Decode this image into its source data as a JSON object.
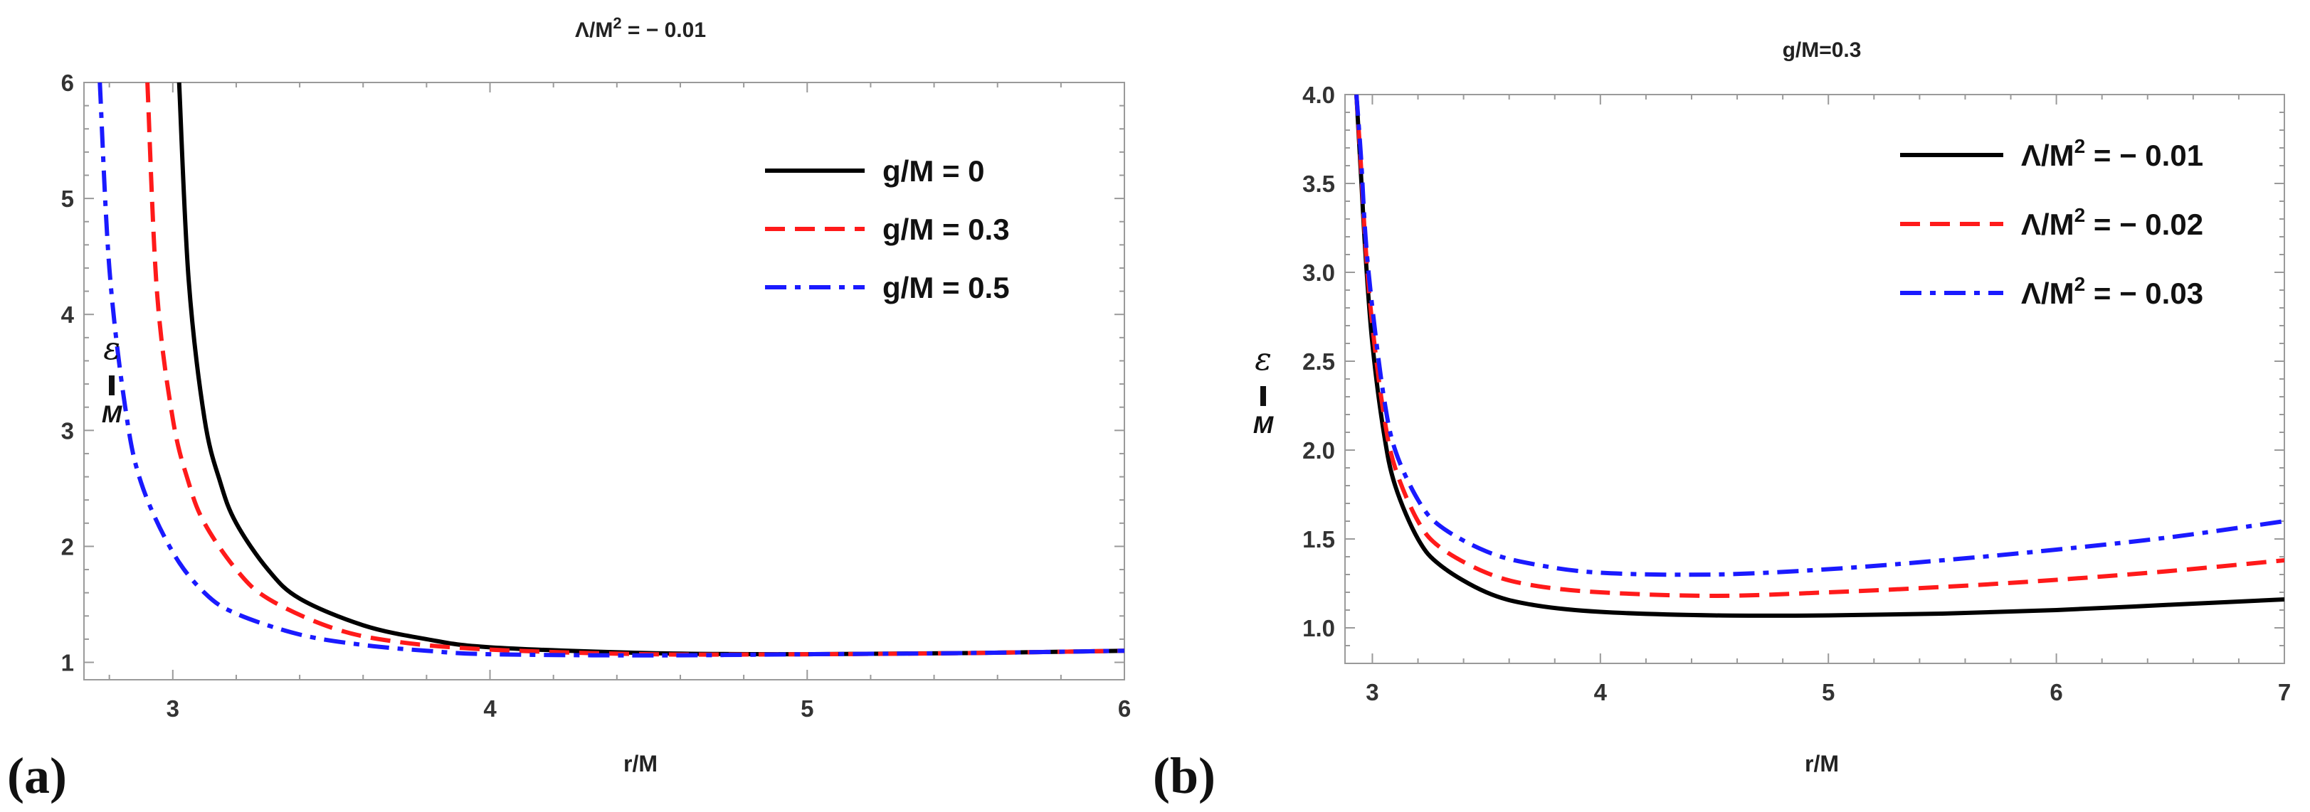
{
  "chart_data": [
    {
      "type": "line",
      "panel_label": "(a)",
      "title": "Λ/M² = − 0.01",
      "title_main": "Λ/M",
      "title_sup": "2",
      "title_tail": " = − 0.01",
      "xlabel": "r/M",
      "ylabel": "ε/M",
      "ylabel_symbol": "ε",
      "ylabel_denominator": "M",
      "xlim": [
        2.72,
        6.0
      ],
      "ylim": [
        0.85,
        6.0
      ],
      "xticks": [
        3,
        4,
        5,
        6
      ],
      "yticks": [
        1,
        2,
        3,
        4,
        5,
        6
      ],
      "legend_position": "top-right",
      "series": [
        {
          "name": "g/M = 0",
          "color": "#000000",
          "style": "solid",
          "x": [
            3.02,
            3.05,
            3.1,
            3.15,
            3.2,
            3.3,
            3.4,
            3.6,
            3.8,
            4.0,
            4.5,
            5.0,
            5.5,
            6.0
          ],
          "y": [
            6.0,
            4.3,
            3.1,
            2.55,
            2.2,
            1.8,
            1.55,
            1.32,
            1.2,
            1.13,
            1.08,
            1.07,
            1.08,
            1.1
          ]
        },
        {
          "name": "g/M = 0.3",
          "color": "#ff1a1a",
          "style": "dashed",
          "x": [
            2.92,
            2.95,
            3.0,
            3.05,
            3.1,
            3.2,
            3.3,
            3.5,
            3.7,
            4.0,
            4.5,
            5.0,
            5.5,
            6.0
          ],
          "y": [
            6.0,
            4.2,
            3.1,
            2.55,
            2.2,
            1.8,
            1.55,
            1.3,
            1.18,
            1.11,
            1.07,
            1.07,
            1.08,
            1.1
          ]
        },
        {
          "name": "g/M = 0.5",
          "color": "#1a1aff",
          "style": "dashdot",
          "x": [
            2.77,
            2.8,
            2.85,
            2.9,
            3.0,
            3.1,
            3.2,
            3.4,
            3.6,
            3.8,
            4.0,
            4.5,
            5.0,
            5.5,
            6.0
          ],
          "y": [
            6.0,
            4.4,
            3.2,
            2.55,
            1.95,
            1.6,
            1.42,
            1.24,
            1.15,
            1.1,
            1.07,
            1.06,
            1.07,
            1.08,
            1.1
          ]
        }
      ]
    },
    {
      "type": "line",
      "panel_label": "(b)",
      "title": "g/M=0.3",
      "xlabel": "r/M",
      "ylabel": "ε/M",
      "ylabel_symbol": "ε",
      "ylabel_denominator": "M",
      "xlim": [
        2.88,
        7.0
      ],
      "ylim": [
        0.8,
        4.0
      ],
      "xticks": [
        3,
        4,
        5,
        6,
        7
      ],
      "yticks": [
        1.0,
        1.5,
        2.0,
        2.5,
        3.0,
        3.5,
        4.0
      ],
      "legend_position": "top-right",
      "legend_prefix": "Λ/M",
      "legend_sup": "2",
      "series": [
        {
          "name": "Λ/M² = − 0.01",
          "label_tail": " = − 0.01",
          "color": "#000000",
          "style": "solid",
          "x": [
            2.93,
            2.95,
            2.97,
            3.0,
            3.05,
            3.1,
            3.2,
            3.3,
            3.5,
            3.7,
            4.0,
            4.5,
            5.0,
            5.5,
            6.0,
            6.5,
            7.0
          ],
          "y": [
            4.0,
            3.55,
            3.1,
            2.6,
            2.1,
            1.8,
            1.5,
            1.35,
            1.2,
            1.13,
            1.09,
            1.07,
            1.07,
            1.08,
            1.1,
            1.13,
            1.16
          ]
        },
        {
          "name": "Λ/M² = − 0.02",
          "label_tail": " = − 0.02",
          "color": "#ff1a1a",
          "style": "dashed",
          "x": [
            2.93,
            2.95,
            2.97,
            3.0,
            3.05,
            3.1,
            3.2,
            3.3,
            3.5,
            3.7,
            4.0,
            4.5,
            5.0,
            5.5,
            6.0,
            6.5,
            7.0
          ],
          "y": [
            4.0,
            3.6,
            3.15,
            2.7,
            2.2,
            1.9,
            1.6,
            1.45,
            1.31,
            1.24,
            1.2,
            1.18,
            1.2,
            1.23,
            1.27,
            1.32,
            1.38
          ]
        },
        {
          "name": "Λ/M² = − 0.03",
          "label_tail": " = − 0.03",
          "color": "#1a1aff",
          "style": "dashdot",
          "x": [
            2.93,
            2.95,
            2.97,
            3.0,
            3.05,
            3.1,
            3.2,
            3.3,
            3.5,
            3.7,
            4.0,
            4.5,
            5.0,
            5.5,
            6.0,
            6.5,
            7.0
          ],
          "y": [
            4.0,
            3.65,
            3.2,
            2.8,
            2.3,
            2.0,
            1.72,
            1.57,
            1.43,
            1.36,
            1.31,
            1.3,
            1.33,
            1.38,
            1.44,
            1.51,
            1.6
          ]
        }
      ]
    }
  ]
}
